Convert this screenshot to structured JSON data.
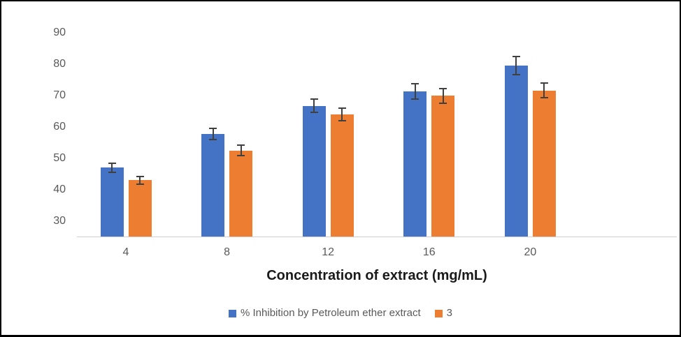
{
  "chart_data": {
    "type": "bar",
    "title": "",
    "xlabel": "Concentration of extract (mg/mL)",
    "ylabel": "",
    "categories": [
      "4",
      "8",
      "12",
      "16",
      "20"
    ],
    "series": [
      {
        "name": "% Inhibition by Petroleum ether extract",
        "color": "#4472C4",
        "values": [
          46.9,
          57.7,
          66.6,
          71.2,
          79.5
        ],
        "errors": [
          1.4,
          1.8,
          2.1,
          2.4,
          2.9
        ]
      },
      {
        "name": "3",
        "color": "#ED7D31",
        "values": [
          42.9,
          52.4,
          64.0,
          69.8,
          71.5
        ],
        "errors": [
          1.3,
          1.7,
          2.0,
          2.4,
          2.3
        ]
      }
    ],
    "y_ticks": [
      30,
      40,
      50,
      60,
      70,
      80,
      90
    ],
    "ylim": [
      25,
      95
    ],
    "grid": false,
    "error_bars": true,
    "legend_position": "bottom",
    "colors": {
      "tick_label": "#595959",
      "axis_line": "#d0cece",
      "error_bar": "#404040",
      "axis_title": "#1a1a1a",
      "frame_border": "#000000",
      "background": "#ffffff"
    }
  }
}
